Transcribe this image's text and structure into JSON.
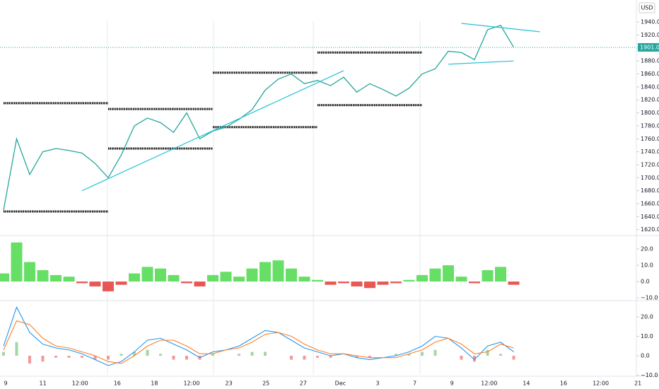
{
  "chart_data": [
    {
      "type": "line",
      "currency": "USD",
      "last_label": "1901.0",
      "ylim": [
        1612,
        1974
      ],
      "yticks": [
        {
          "value": 1620,
          "label": "1620.0"
        },
        {
          "value": 1640,
          "label": "1640.0"
        },
        {
          "value": 1660,
          "label": "1660.0"
        },
        {
          "value": 1680,
          "label": "1680.0"
        },
        {
          "value": 1700,
          "label": "1700.0"
        },
        {
          "value": 1720,
          "label": "1720.0"
        },
        {
          "value": 1740,
          "label": "1740.0"
        },
        {
          "value": 1760,
          "label": "1760.0"
        },
        {
          "value": 1780,
          "label": "1780.0"
        },
        {
          "value": 1800,
          "label": "1800.0"
        },
        {
          "value": 1820,
          "label": "1820.0"
        },
        {
          "value": 1840,
          "label": "1840.0"
        },
        {
          "value": 1860,
          "label": "1860.0"
        },
        {
          "value": 1880,
          "label": "1880.0"
        },
        {
          "value": 1900,
          "label": "1900.0"
        },
        {
          "value": 1920,
          "label": "1920.0"
        },
        {
          "value": 1940,
          "label": "1940.0"
        }
      ],
      "time_labels": [
        "9",
        "11",
        "12:00",
        "16",
        "18",
        "12:00",
        "23",
        "25",
        "27",
        "Dec",
        "3",
        "7",
        "9",
        "12:00",
        "14",
        "16",
        "12:00",
        "21"
      ],
      "series": [
        {
          "color": "#26a69a",
          "values": [
            1650,
            1760,
            1705,
            1740,
            1745,
            1742,
            1738,
            1722,
            1700,
            1735,
            1780,
            1792,
            1785,
            1770,
            1800,
            1760,
            1772,
            1778,
            1790,
            1805,
            1835,
            1852,
            1860,
            1845,
            1850,
            1842,
            1855,
            1832,
            1845,
            1836,
            1826,
            1838,
            1860,
            1868,
            1895,
            1893,
            1882,
            1928,
            1935,
            1901
          ]
        }
      ],
      "levels": [
        {
          "value": 1815,
          "x": [
            0,
            8
          ]
        },
        {
          "value": 1648,
          "x": [
            0,
            8
          ]
        },
        {
          "value": 1806,
          "x": [
            8,
            16
          ]
        },
        {
          "value": 1745,
          "x": [
            8,
            16
          ]
        },
        {
          "value": 1862,
          "x": [
            16,
            24
          ]
        },
        {
          "value": 1778,
          "x": [
            16,
            24
          ]
        },
        {
          "value": 1893,
          "x": [
            24,
            32
          ]
        },
        {
          "value": 1812,
          "x": [
            24,
            32
          ]
        }
      ],
      "trend_lines": [
        {
          "from": [
            6,
            1680
          ],
          "to": [
            26,
            1865
          ]
        },
        {
          "from": [
            34,
            1875
          ],
          "to": [
            39,
            1880
          ]
        },
        {
          "from": [
            35,
            1938
          ],
          "to": [
            41,
            1925
          ]
        }
      ],
      "trend_color": "#22c1d6"
    },
    {
      "type": "histogram",
      "ylim": [
        -11.7,
        27.4
      ],
      "yticks": [
        {
          "value": 20,
          "label": "20.0"
        },
        {
          "value": 10,
          "label": "10.0"
        },
        {
          "value": 0,
          "label": "0.0"
        },
        {
          "value": -10,
          "label": "−10.0"
        }
      ],
      "up_color": "#4cd94c",
      "down_color": "#e53935",
      "values": [
        5,
        24,
        12,
        7,
        4,
        3,
        -1,
        -3,
        -6,
        -2,
        5,
        9,
        8,
        4,
        -1,
        -3,
        4,
        6,
        3,
        8,
        12,
        13,
        8,
        3,
        1,
        -2,
        -1,
        -3,
        -4,
        -2,
        -1,
        1,
        4,
        8,
        10,
        3,
        -1,
        7,
        9,
        -2
      ]
    },
    {
      "type": "macd",
      "ylim": [
        -10.2,
        27.3
      ],
      "yticks": [
        {
          "value": 20,
          "label": "20.0"
        },
        {
          "value": 10,
          "label": "10.0"
        },
        {
          "value": 0,
          "label": "0.0"
        },
        {
          "value": -10,
          "label": "−10.0"
        }
      ],
      "series": [
        {
          "color": "#2196f3",
          "values": [
            5,
            25,
            12,
            6,
            4,
            3,
            1,
            -2,
            -5,
            -3,
            2,
            8,
            9,
            6,
            3,
            -1,
            2,
            3,
            5,
            9,
            13,
            12,
            8,
            4,
            2,
            0,
            1,
            -1,
            -2,
            -1,
            0,
            2,
            5,
            10,
            9,
            4,
            -2,
            5,
            7,
            2
          ]
        },
        {
          "color": "#ff7f27",
          "values": [
            3,
            18,
            16,
            9,
            5,
            4,
            2,
            0,
            -3,
            -4,
            0,
            5,
            8,
            8,
            5,
            1,
            1,
            3,
            4,
            7,
            11,
            12,
            10,
            6,
            3,
            1,
            1,
            0,
            -1,
            -1,
            -1,
            1,
            3,
            7,
            9,
            6,
            1,
            2,
            6,
            4
          ]
        }
      ],
      "hist_up": "#a5d6a7",
      "hist_down": "#ef9a9a",
      "hist": [
        2,
        7,
        -4,
        -3,
        -1,
        -1,
        -1,
        -2,
        -2,
        1,
        2,
        3,
        1,
        -2,
        -2,
        -2,
        1,
        0,
        1,
        2,
        2,
        0,
        -2,
        -2,
        -1,
        -1,
        0,
        -1,
        -1,
        0,
        1,
        1,
        2,
        3,
        0,
        -2,
        -3,
        3,
        1,
        -2
      ]
    }
  ]
}
